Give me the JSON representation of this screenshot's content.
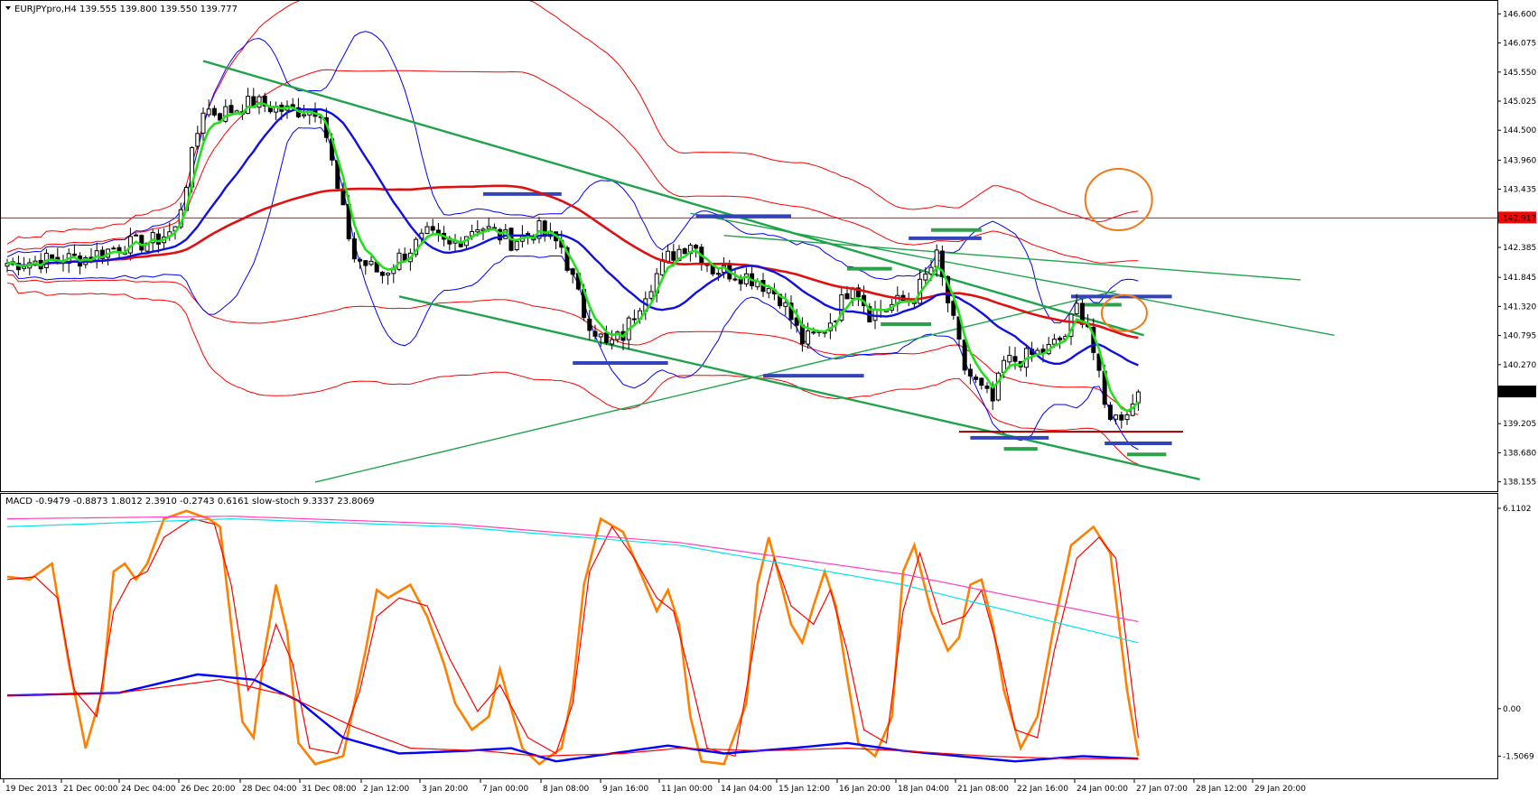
{
  "chart_data": [
    {
      "type": "candlestick",
      "title": "EURJPYpro,H4  139.555 139.800 139.550 139.777",
      "symbol": "EURJPYpro",
      "timeframe": "H4",
      "ohlc_header": [
        "139.555",
        "139.800",
        "139.550",
        "139.777"
      ],
      "y_ticks": [
        "146.600",
        "146.075",
        "145.550",
        "145.025",
        "144.500",
        "143.960",
        "143.435",
        "142.917",
        "142.385",
        "141.845",
        "141.320",
        "140.795",
        "140.270",
        "139.777",
        "139.205",
        "138.680",
        "138.155"
      ],
      "ylim": [
        138.1,
        146.72
      ],
      "current_price": "139.777",
      "horizontal_level": "142.917",
      "x_labels": [
        "19 Dec 2013",
        "21 Dec 00:00",
        "24 Dec 04:00",
        "26 Dec 20:00",
        "28 Dec 04:00",
        "31 Dec 08:00",
        "2 Jan 12:00",
        "3 Jan 20:00",
        "7 Jan 00:00",
        "8 Jan 08:00",
        "9 Jan 16:00",
        "11 Jan 00:00",
        "14 Jan 04:00",
        "15 Jan 12:00",
        "16 Jan 20:00",
        "18 Jan 04:00",
        "21 Jan 08:00",
        "22 Jan 16:00",
        "24 Jan 00:00",
        "27 Jan 07:00",
        "28 Jan 12:00",
        "29 Jan 20:00"
      ],
      "price_path": [
        [
          0,
          142.1
        ],
        [
          14,
          142.2
        ],
        [
          20,
          142.4
        ],
        [
          26,
          142.5
        ],
        [
          30,
          142.7
        ],
        [
          35,
          144.9
        ],
        [
          38,
          144.8
        ],
        [
          44,
          145.0
        ],
        [
          50,
          144.85
        ],
        [
          56,
          144.9
        ],
        [
          59,
          143.4
        ],
        [
          62,
          142.2
        ],
        [
          67,
          141.9
        ],
        [
          70,
          142.2
        ],
        [
          75,
          142.6
        ],
        [
          79,
          142.4
        ],
        [
          84,
          142.8
        ],
        [
          90,
          142.5
        ],
        [
          95,
          142.7
        ],
        [
          99,
          142.4
        ],
        [
          103,
          141.2
        ],
        [
          107,
          140.6
        ],
        [
          110,
          140.8
        ],
        [
          114,
          141.6
        ],
        [
          118,
          142.2
        ],
        [
          122,
          142.5
        ],
        [
          126,
          142.0
        ],
        [
          131,
          141.9
        ],
        [
          134,
          141.8
        ],
        [
          138,
          141.5
        ],
        [
          142,
          140.7
        ],
        [
          145,
          140.8
        ],
        [
          148,
          141.2
        ],
        [
          151,
          141.8
        ],
        [
          154,
          141.2
        ],
        [
          157,
          141.3
        ],
        [
          162,
          141.5
        ],
        [
          166,
          142.2
        ],
        [
          168,
          141.4
        ],
        [
          171,
          140.2
        ],
        [
          174,
          139.8
        ],
        [
          176,
          139.6
        ],
        [
          178,
          140.3
        ],
        [
          182,
          140.4
        ],
        [
          186,
          140.55
        ],
        [
          189,
          140.8
        ],
        [
          191,
          141.3
        ],
        [
          193,
          141.0
        ],
        [
          196,
          139.5
        ],
        [
          198,
          139.3
        ],
        [
          201,
          139.55
        ],
        [
          202,
          139.777
        ]
      ],
      "moving_averages": [
        "green fast MA",
        "blue MA",
        "red slow MA"
      ],
      "bollinger_bands": "blue and red envelopes",
      "current_price_hex": "#000000",
      "level_hex": "#ff0000"
    },
    {
      "type": "line",
      "title": "MACD -0.9479 -0.8873 1.8012 2.3910 -0.2743 0.6161  slow-stoch 9.3337 23.8069",
      "y_ticks": [
        "6.1102",
        "0.00",
        "-1.5069"
      ],
      "series": [
        {
          "color": "#ff8000",
          "values": [
            [
              0,
              73
            ],
            [
              4,
              72
            ],
            [
              8,
              78
            ],
            [
              11,
              40
            ],
            [
              14,
              8
            ],
            [
              17,
              30
            ],
            [
              19,
              75
            ],
            [
              21,
              78
            ],
            [
              23,
              72
            ],
            [
              25,
              78
            ],
            [
              28,
              95
            ],
            [
              32,
              98
            ],
            [
              36,
              95
            ],
            [
              38,
              92
            ],
            [
              40,
              55
            ],
            [
              42,
              18
            ],
            [
              44,
              12
            ],
            [
              46,
              45
            ],
            [
              48,
              70
            ],
            [
              50,
              52
            ],
            [
              52,
              10
            ],
            [
              55,
              2
            ],
            [
              60,
              5
            ],
            [
              64,
              45
            ],
            [
              66,
              68
            ],
            [
              68,
              65
            ],
            [
              72,
              70
            ],
            [
              75,
              58
            ],
            [
              78,
              40
            ],
            [
              80,
              25
            ],
            [
              83,
              15
            ],
            [
              86,
              20
            ],
            [
              88,
              38
            ],
            [
              92,
              8
            ],
            [
              95,
              2
            ],
            [
              99,
              8
            ],
            [
              101,
              30
            ],
            [
              103,
              70
            ],
            [
              106,
              95
            ],
            [
              110,
              90
            ],
            [
              114,
              70
            ],
            [
              116,
              60
            ],
            [
              118,
              68
            ],
            [
              120,
              55
            ],
            [
              122,
              20
            ],
            [
              124,
              3
            ],
            [
              128,
              2
            ],
            [
              132,
              25
            ],
            [
              134,
              70
            ],
            [
              136,
              88
            ],
            [
              138,
              72
            ],
            [
              140,
              55
            ],
            [
              142,
              48
            ],
            [
              144,
              62
            ],
            [
              146,
              75
            ],
            [
              148,
              62
            ],
            [
              150,
              35
            ],
            [
              152,
              10
            ],
            [
              155,
              5
            ],
            [
              158,
              20
            ],
            [
              160,
              75
            ],
            [
              162,
              85
            ],
            [
              165,
              60
            ],
            [
              168,
              45
            ],
            [
              170,
              50
            ],
            [
              172,
              70
            ],
            [
              174,
              72
            ],
            [
              176,
              55
            ],
            [
              178,
              30
            ],
            [
              181,
              8
            ],
            [
              184,
              20
            ],
            [
              187,
              55
            ],
            [
              190,
              85
            ],
            [
              194,
              92
            ],
            [
              197,
              82
            ],
            [
              200,
              30
            ],
            [
              202,
              5
            ]
          ]
        },
        {
          "color": "#ff0000",
          "values": [
            [
              0,
              72
            ],
            [
              5,
              73
            ],
            [
              9,
              65
            ],
            [
              12,
              30
            ],
            [
              16,
              20
            ],
            [
              19,
              60
            ],
            [
              22,
              72
            ],
            [
              25,
              75
            ],
            [
              28,
              88
            ],
            [
              33,
              95
            ],
            [
              37,
              93
            ],
            [
              40,
              70
            ],
            [
              43,
              30
            ],
            [
              46,
              40
            ],
            [
              48,
              55
            ],
            [
              51,
              40
            ],
            [
              54,
              8
            ],
            [
              59,
              6
            ],
            [
              63,
              30
            ],
            [
              66,
              58
            ],
            [
              70,
              65
            ],
            [
              75,
              62
            ],
            [
              79,
              42
            ],
            [
              84,
              22
            ],
            [
              88,
              32
            ],
            [
              93,
              12
            ],
            [
              98,
              6
            ],
            [
              101,
              25
            ],
            [
              104,
              75
            ],
            [
              108,
              92
            ],
            [
              112,
              80
            ],
            [
              116,
              65
            ],
            [
              119,
              60
            ],
            [
              122,
              35
            ],
            [
              125,
              8
            ],
            [
              130,
              5
            ],
            [
              134,
              55
            ],
            [
              137,
              80
            ],
            [
              140,
              62
            ],
            [
              144,
              55
            ],
            [
              147,
              68
            ],
            [
              150,
              45
            ],
            [
              153,
              15
            ],
            [
              157,
              10
            ],
            [
              160,
              60
            ],
            [
              163,
              82
            ],
            [
              167,
              55
            ],
            [
              171,
              58
            ],
            [
              174,
              68
            ],
            [
              177,
              45
            ],
            [
              180,
              15
            ],
            [
              184,
              12
            ],
            [
              187,
              45
            ],
            [
              191,
              80
            ],
            [
              195,
              88
            ],
            [
              198,
              80
            ],
            [
              202,
              12
            ]
          ]
        },
        {
          "color": "#00e5ee",
          "values": [
            [
              0,
              92
            ],
            [
              40,
              95
            ],
            [
              80,
              92
            ],
            [
              120,
              85
            ],
            [
              160,
              70
            ],
            [
              202,
              48
            ]
          ]
        },
        {
          "color": "#ff40c0",
          "values": [
            [
              0,
              95
            ],
            [
              40,
              96
            ],
            [
              80,
              93
            ],
            [
              120,
              86
            ],
            [
              160,
              74
            ],
            [
              202,
              56
            ]
          ]
        },
        {
          "color": "#0000ff",
          "values": [
            [
              0,
              28
            ],
            [
              20,
              29
            ],
            [
              34,
              36
            ],
            [
              44,
              34
            ],
            [
              52,
              26
            ],
            [
              60,
              12
            ],
            [
              70,
              6
            ],
            [
              82,
              7
            ],
            [
              90,
              8
            ],
            [
              98,
              3
            ],
            [
              108,
              6
            ],
            [
              118,
              9
            ],
            [
              128,
              6
            ],
            [
              140,
              8
            ],
            [
              150,
              10
            ],
            [
              160,
              7
            ],
            [
              170,
              5
            ],
            [
              180,
              3
            ],
            [
              192,
              5
            ],
            [
              202,
              4
            ]
          ]
        },
        {
          "color": "#ff0000",
          "values": [
            [
              0,
              28
            ],
            [
              20,
              29
            ],
            [
              38,
              34
            ],
            [
              50,
              28
            ],
            [
              62,
              16
            ],
            [
              72,
              8
            ],
            [
              85,
              7
            ],
            [
              95,
              5
            ],
            [
              110,
              6
            ],
            [
              120,
              8
            ],
            [
              135,
              7
            ],
            [
              150,
              8
            ],
            [
              160,
              7
            ],
            [
              175,
              5
            ],
            [
              190,
              4
            ],
            [
              202,
              4
            ]
          ]
        }
      ]
    }
  ]
}
